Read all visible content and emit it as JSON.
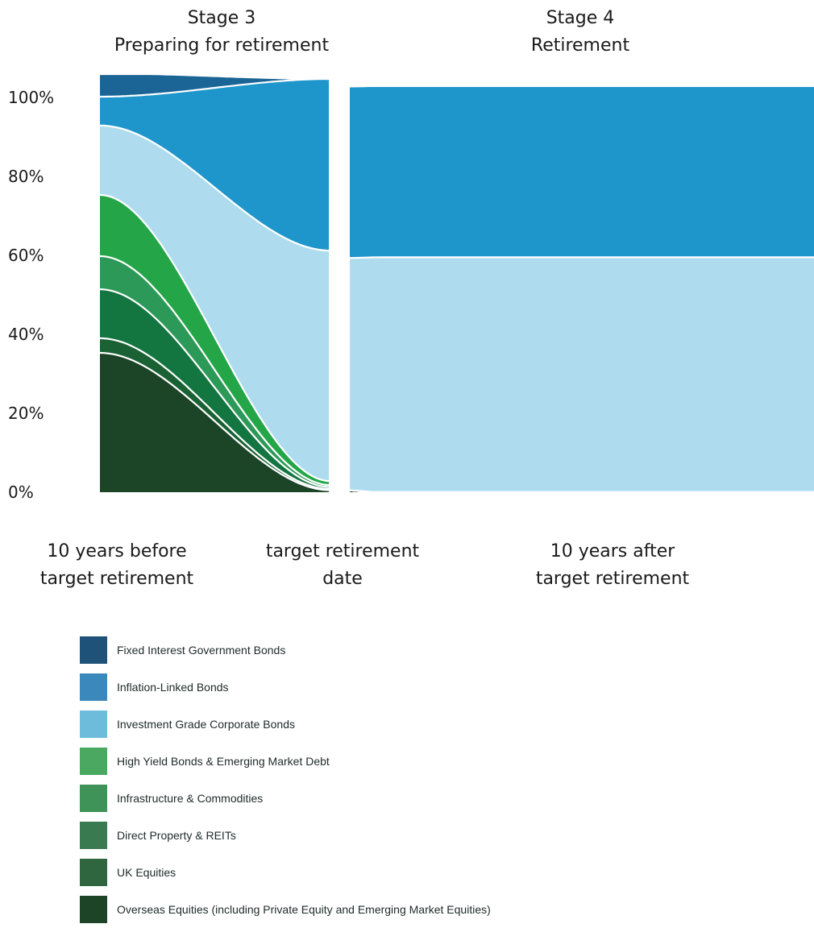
{
  "chart_data": {
    "type": "area",
    "stages": [
      {
        "title": "Stage 3",
        "subtitle": "Preparing for retirement"
      },
      {
        "title": "Stage 4",
        "subtitle": "Retirement"
      }
    ],
    "x_labels": [
      {
        "line1": "10 years before",
        "line2": "target retirement"
      },
      {
        "line1": "target retirement",
        "line2": "date"
      },
      {
        "line1": "10 years after",
        "line2": "target retirement"
      }
    ],
    "y_ticks": [
      "0%",
      "20%",
      "40%",
      "60%",
      "80%",
      "100%"
    ],
    "ylim": [
      0,
      100
    ],
    "legend": [
      {
        "name": "Fixed Interest Government Bonds",
        "color": "#1f5278"
      },
      {
        "name": "Inflation-Linked Bonds",
        "color": "#3b88bc"
      },
      {
        "name": "Investment Grade Corporate Bonds",
        "color": "#6dbcdc"
      },
      {
        "name": "High Yield Bonds & Emerging Market Debt",
        "color": "#4aa860"
      },
      {
        "name": "Infrastructure & Commodities",
        "color": "#3f9258"
      },
      {
        "name": "Direct Property & REITs",
        "color": "#3a7a50"
      },
      {
        "name": "UK Equities",
        "color": "#2f6640"
      },
      {
        "name": "Overseas Equities (including Private Equity and Emerging Market Equities)",
        "color": "#1d4426"
      }
    ],
    "series": [
      {
        "key": "overseas_equities",
        "color": "#1c4427",
        "stage3_start": 35.3,
        "stage3_end": 0.5,
        "stage4_start": 0.5,
        "stage4_end": 0
      },
      {
        "key": "uk_equities",
        "color": "#1a6234",
        "stage3_start": 3.7,
        "stage3_end": 0.3,
        "stage4_start": 0,
        "stage4_end": 0
      },
      {
        "key": "direct_property_reits",
        "color": "#137540",
        "stage3_start": 12.4,
        "stage3_end": 0.5,
        "stage4_start": 0,
        "stage4_end": 0
      },
      {
        "key": "infrastructure_commodities",
        "color": "#2d9958",
        "stage3_start": 8.4,
        "stage3_end": 0.5,
        "stage4_start": 0,
        "stage4_end": 0
      },
      {
        "key": "high_yield_emd",
        "color": "#24a648",
        "stage3_start": 15.5,
        "stage3_end": 1.0,
        "stage4_start": 0,
        "stage4_end": 0
      },
      {
        "key": "investment_grade_corporate",
        "color": "#aedcee",
        "stage3_start": 17.6,
        "stage3_end": 58.4,
        "stage4_start": 58.8,
        "stage4_end": 59.5
      },
      {
        "key": "inflation_linked_bonds",
        "color": "#1e96cc",
        "stage3_start": 7.3,
        "stage3_end": 43.5,
        "stage4_start": 43.5,
        "stage4_end": 43.4
      },
      {
        "key": "fixed_interest_government",
        "color": "#1a6596",
        "stage3_start": 5.9,
        "stage3_end": 0.0,
        "stage4_start": 0,
        "stage4_end": 0
      }
    ]
  }
}
